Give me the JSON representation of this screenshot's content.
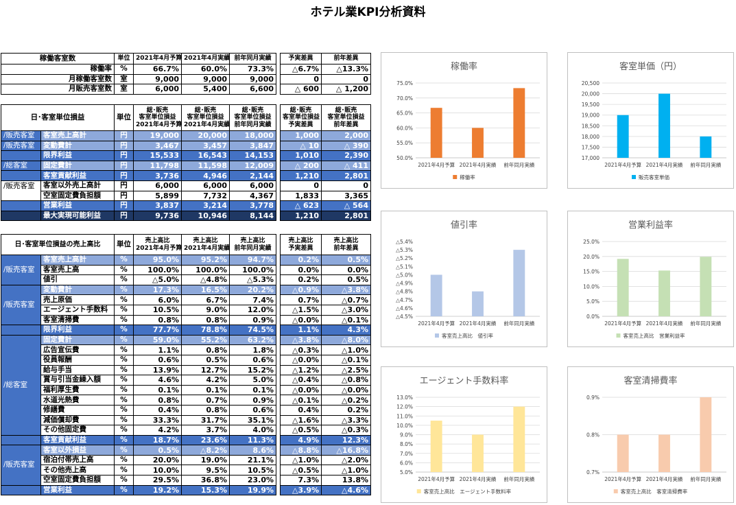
{
  "title": "ホテル業KPI分析資料",
  "t1": {
    "headers": [
      "稼働客室数",
      "単位",
      "2021年4月予算",
      "2021年4月実績",
      "前年同月実績",
      "予実差異",
      "前年差異"
    ],
    "rows": [
      {
        "label": "稼働率",
        "unit": "%",
        "v": [
          "66.7%",
          "60.0%",
          "73.3%",
          "△6.7%",
          "△13.3%"
        ]
      },
      {
        "label": "月稼働客室数",
        "unit": "室",
        "v": [
          "9,000",
          "9,000",
          "9,000",
          "0",
          "0"
        ]
      },
      {
        "label": "月販売客室数",
        "unit": "室",
        "v": [
          "6,000",
          "5,400",
          "6,600",
          "△ 600",
          "△ 1,200"
        ]
      }
    ]
  },
  "t2": {
    "headers": [
      "日･客室単位損益",
      "単位",
      "総･販売\n客室単位損益\n2021年4月予算",
      "総･販売\n客室単位損益\n2021年4月実績",
      "総･販売\n客室単位損益\n前年同月実績",
      "総･販売\n客室単位損益\n予実差異",
      "総･販売\n客室単位損益\n前年差異"
    ],
    "rows": [
      {
        "cat": "/販売客室",
        "label": "客室売上高計",
        "unit": "円",
        "v": [
          "19,000",
          "20,000",
          "18,000",
          "1,000",
          "2,000"
        ],
        "style": "light"
      },
      {
        "cat": "/販売客室",
        "label": "変動費計",
        "unit": "円",
        "v": [
          "3,467",
          "3,457",
          "3,847",
          "△ 10",
          "△ 390"
        ],
        "style": "light"
      },
      {
        "cat": "",
        "label": "限界利益",
        "unit": "円",
        "v": [
          "15,533",
          "16,543",
          "14,153",
          "1,010",
          "2,390"
        ],
        "style": "band"
      },
      {
        "cat": "/総客室",
        "label": "固定費計",
        "unit": "円",
        "v": [
          "11,798",
          "11,598",
          "12,009",
          "△ 200",
          "△ 411"
        ],
        "style": "light"
      },
      {
        "cat": "",
        "label": "客室貢献利益",
        "unit": "円",
        "v": [
          "3,736",
          "4,946",
          "2,144",
          "1,210",
          "2,801"
        ],
        "style": "band"
      },
      {
        "cat": "/販売客室",
        "label": "客室以外売上高計",
        "unit": "円",
        "v": [
          "6,000",
          "6,000",
          "6,000",
          "0",
          "0"
        ],
        "style": "white"
      },
      {
        "cat": "",
        "label": "空室固定費負担額",
        "unit": "円",
        "v": [
          "5,899",
          "7,732",
          "4,367",
          "1,833",
          "3,365"
        ],
        "style": "white"
      },
      {
        "cat": "",
        "label": "営業利益",
        "unit": "円",
        "v": [
          "3,837",
          "3,214",
          "3,778",
          "△ 623",
          "△ 564"
        ],
        "style": "band"
      },
      {
        "cat": "",
        "label": "最大実現可能利益",
        "unit": "円",
        "v": [
          "9,736",
          "10,946",
          "8,144",
          "1,210",
          "2,801"
        ],
        "style": "dark"
      }
    ]
  },
  "t3": {
    "headers": [
      "日･客室単位損益の売上高比",
      "単位",
      "売上高比\n2021年4月予算",
      "売上高比\n2021年4月実績",
      "売上高比\n前年同月実績",
      "売上高比\n予実差異",
      "売上高比\n前年差異"
    ],
    "groups": [
      {
        "cat": "/販売客室",
        "rows": [
          {
            "label": "客室売上高計",
            "unit": "%",
            "v": [
              "95.0%",
              "95.2%",
              "94.7%",
              "0.2%",
              "0.5%"
            ],
            "style": "light"
          },
          {
            "label": "客室売上高",
            "unit": "%",
            "v": [
              "100.0%",
              "100.0%",
              "100.0%",
              "0.0%",
              "0.0%"
            ],
            "style": "white"
          },
          {
            "label": "値引",
            "unit": "%",
            "v": [
              "△5.0%",
              "△4.8%",
              "△5.3%",
              "0.2%",
              "0.5%"
            ],
            "style": "white"
          }
        ]
      },
      {
        "cat": "/販売客室",
        "rows": [
          {
            "label": "変動費計",
            "unit": "%",
            "v": [
              "17.3%",
              "16.5%",
              "20.2%",
              "△0.9%",
              "△3.8%"
            ],
            "style": "light"
          },
          {
            "label": "売上原価",
            "unit": "%",
            "v": [
              "6.0%",
              "6.7%",
              "7.4%",
              "0.7%",
              "△0.7%"
            ],
            "style": "white"
          },
          {
            "label": "エージェント手数料",
            "unit": "%",
            "v": [
              "10.5%",
              "9.0%",
              "12.0%",
              "△1.5%",
              "△3.0%"
            ],
            "style": "white"
          },
          {
            "label": "客室清掃費",
            "unit": "%",
            "v": [
              "0.8%",
              "0.8%",
              "0.9%",
              "△0.0%",
              "△0.1%"
            ],
            "style": "white"
          }
        ]
      },
      {
        "cat": "",
        "rows": [
          {
            "label": "限界利益",
            "unit": "%",
            "v": [
              "77.7%",
              "78.8%",
              "74.5%",
              "1.1%",
              "4.3%"
            ],
            "style": "band"
          }
        ]
      },
      {
        "cat": "/総客室",
        "rows": [
          {
            "label": "固定費計",
            "unit": "%",
            "v": [
              "59.0%",
              "55.2%",
              "63.2%",
              "△3.8%",
              "△8.0%"
            ],
            "style": "light"
          },
          {
            "label": "広告宣伝費",
            "unit": "%",
            "v": [
              "1.1%",
              "0.8%",
              "1.8%",
              "△0.3%",
              "△1.0%"
            ],
            "style": "white"
          },
          {
            "label": "役員報酬",
            "unit": "%",
            "v": [
              "0.6%",
              "0.5%",
              "0.6%",
              "△0.0%",
              "△0.1%"
            ],
            "style": "white"
          },
          {
            "label": "給与手当",
            "unit": "%",
            "v": [
              "13.9%",
              "12.7%",
              "15.2%",
              "△1.2%",
              "△2.5%"
            ],
            "style": "white"
          },
          {
            "label": "賞与引当金繰入額",
            "unit": "%",
            "v": [
              "4.6%",
              "4.2%",
              "5.0%",
              "△0.4%",
              "△0.8%"
            ],
            "style": "white"
          },
          {
            "label": "福利厚生費",
            "unit": "%",
            "v": [
              "0.1%",
              "0.1%",
              "0.1%",
              "△0.0%",
              "△0.0%"
            ],
            "style": "white"
          },
          {
            "label": "水道光熱費",
            "unit": "%",
            "v": [
              "0.8%",
              "0.7%",
              "0.9%",
              "△0.1%",
              "△0.2%"
            ],
            "style": "white"
          },
          {
            "label": "修繕費",
            "unit": "%",
            "v": [
              "0.4%",
              "0.8%",
              "0.6%",
              "0.4%",
              "0.2%"
            ],
            "style": "white"
          },
          {
            "label": "減価償却費",
            "unit": "%",
            "v": [
              "33.3%",
              "31.7%",
              "35.1%",
              "△1.6%",
              "△3.3%"
            ],
            "style": "white"
          },
          {
            "label": "その他固定費",
            "unit": "%",
            "v": [
              "4.2%",
              "3.7%",
              "4.0%",
              "△0.5%",
              "△0.3%"
            ],
            "style": "white"
          }
        ]
      },
      {
        "cat": "",
        "rows": [
          {
            "label": "客室貢献利益",
            "unit": "%",
            "v": [
              "18.7%",
              "23.6%",
              "11.3%",
              "4.9%",
              "12.3%"
            ],
            "style": "band"
          }
        ]
      },
      {
        "cat": "/販売客室",
        "rows": [
          {
            "label": "客室以外損益",
            "unit": "%",
            "v": [
              "0.5%",
              "△8.2%",
              "8.6%",
              "△8.8%",
              "△16.8%"
            ],
            "style": "light"
          },
          {
            "label": "宿泊付帯売上高",
            "unit": "%",
            "v": [
              "20.0%",
              "19.0%",
              "21.1%",
              "△1.0%",
              "△2.0%"
            ],
            "style": "white"
          },
          {
            "label": "その他売上高",
            "unit": "%",
            "v": [
              "10.0%",
              "9.5%",
              "10.5%",
              "△0.5%",
              "△1.0%"
            ],
            "style": "white"
          },
          {
            "label": "空室固定費負担額",
            "unit": "%",
            "v": [
              "29.5%",
              "36.8%",
              "23.0%",
              "7.3%",
              "13.8%"
            ],
            "style": "white"
          }
        ]
      },
      {
        "cat": "",
        "rows": [
          {
            "label": "営業利益",
            "unit": "%",
            "v": [
              "19.2%",
              "15.3%",
              "19.9%",
              "△3.9%",
              "△4.6%"
            ],
            "style": "band"
          }
        ]
      }
    ]
  },
  "chart_data": [
    {
      "type": "bar",
      "title": "稼働率",
      "categories": [
        "2021年4月予算",
        "2021年4月実績",
        "前年同月実績"
      ],
      "values": [
        66.7,
        60.0,
        73.3
      ],
      "legend": "稼働率",
      "color": "#ed7d31",
      "ylim": [
        50,
        75
      ],
      "step": 5,
      "decimals": 1,
      "suffix": "%",
      "neg": false,
      "grid": true,
      "legend_position": "bottom"
    },
    {
      "type": "bar",
      "title": "客室単価（円）",
      "categories": [
        "2021年4月予算",
        "2021年4月実績",
        "前年同月実績"
      ],
      "values": [
        19000,
        20000,
        18000
      ],
      "legend": "販売客室単価",
      "color": "#00b0f0",
      "ylim": [
        17000,
        20500
      ],
      "step": 500,
      "decimals": 0,
      "suffix": "",
      "neg": false,
      "comma": true,
      "grid": true,
      "legend_position": "bottom"
    },
    {
      "type": "bar",
      "title": "値引率",
      "categories": [
        "2021年4月予算",
        "2021年4月実績",
        "前年同月実績"
      ],
      "values": [
        -5.0,
        -4.8,
        -5.3
      ],
      "legend": "客室売上高比　値引率",
      "color": "#b4c7e7",
      "ylim": [
        -4.5,
        -5.4
      ],
      "step": -0.1,
      "decimals": 1,
      "suffix": "%",
      "neg": true,
      "grid": false,
      "legend_position": "bottom"
    },
    {
      "type": "bar",
      "title": "営業利益率",
      "categories": [
        "2021年4月予算",
        "2021年4月実績",
        "前年同月実績"
      ],
      "values": [
        19.2,
        15.3,
        19.9
      ],
      "legend": "客室売上高比　営業利益率",
      "color": "#c5e0b4",
      "ylim": [
        0,
        25
      ],
      "step": 5,
      "decimals": 1,
      "suffix": "%",
      "neg": false,
      "grid": true,
      "legend_position": "bottom"
    },
    {
      "type": "bar",
      "title": "エージェント手数料率",
      "categories": [
        "2021年4月予算",
        "2021年4月実績",
        "前年同月実績"
      ],
      "values": [
        10.5,
        9.0,
        12.0
      ],
      "legend": "客室売上高比　エージェント手数料率",
      "color": "#ffe699",
      "ylim": [
        5,
        13
      ],
      "step": 1,
      "decimals": 1,
      "suffix": "%",
      "neg": false,
      "grid": true,
      "legend_position": "bottom"
    },
    {
      "type": "bar",
      "title": "客室清掃費率",
      "categories": [
        "2021年4月予算",
        "2021年4月実績",
        "前年同月実績"
      ],
      "values": [
        0.8,
        0.8,
        0.9
      ],
      "legend": "客室売上高比　客室清掃費率",
      "color": "#f8cbad",
      "ylim": [
        0.7,
        0.9
      ],
      "step": 0.1,
      "decimals": 1,
      "suffix": "%",
      "neg": false,
      "grid": true,
      "legend_position": "bottom"
    }
  ]
}
